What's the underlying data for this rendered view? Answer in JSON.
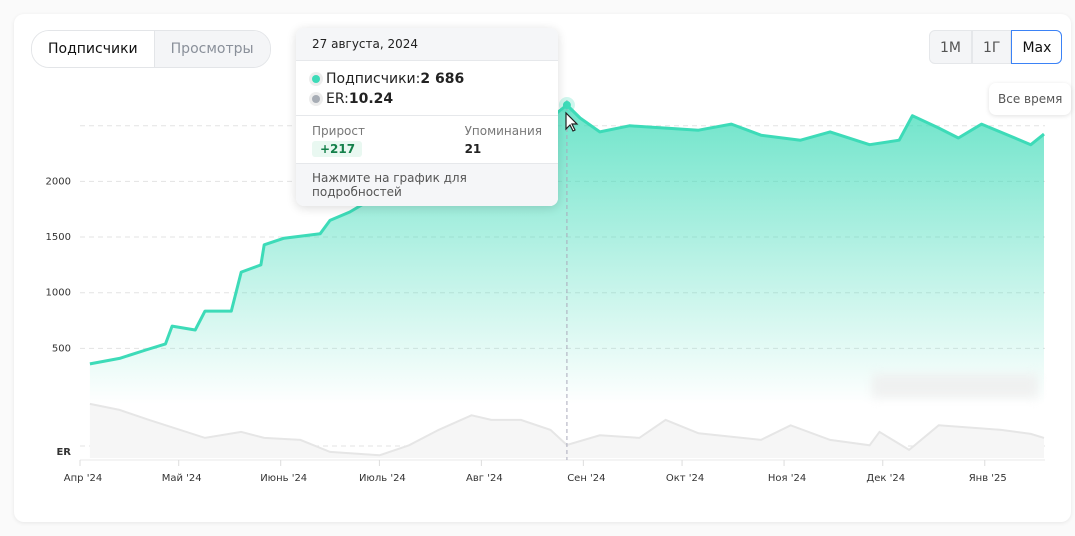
{
  "tabs": [
    {
      "label": "Подписчики",
      "active": true
    },
    {
      "label": "Просмотры",
      "active": false
    }
  ],
  "ranges": [
    {
      "label": "1М"
    },
    {
      "label": "1Г"
    },
    {
      "label": "Max",
      "active": true
    }
  ],
  "range_hint": "Все время",
  "tooltip": {
    "date": "27 августа, 2024",
    "subs_label": "Подписчики: ",
    "subs_value": "2 686",
    "er_label": "ER: ",
    "er_value": "10.24",
    "growth_label": "Прирост",
    "growth_value": "+217",
    "mentions_label": "Упоминания",
    "mentions_value": "21",
    "footer": "Нажмите на график для подробностей"
  },
  "colors": {
    "subscribers": "#3ddbb8",
    "er": "#e6e6e6",
    "accent": "#3b82f6"
  },
  "chart_data": {
    "type": "area",
    "ylim": [
      0,
      2500
    ],
    "y_ticks": [
      "500",
      "1000",
      "1500",
      "2000"
    ],
    "y_tick_values": [
      500,
      1000,
      1500,
      2000
    ],
    "er_axis_label": "ER",
    "x_ticks": [
      "Апр '24",
      "Май '24",
      "Июнь '24",
      "Июль '24",
      "Авг '24",
      "Сен '24",
      "Окт '24",
      "Ноя '24",
      "Дек '24",
      "Янв '25"
    ],
    "x_tick_dates": [
      "2024-04-01",
      "2024-05-01",
      "2024-06-01",
      "2024-07-01",
      "2024-08-01",
      "2024-09-01",
      "2024-10-01",
      "2024-11-01",
      "2024-12-01",
      "2025-01-01"
    ],
    "grid": true,
    "highlight_date": "2024-08-27",
    "series": [
      {
        "name": "Подписчики",
        "points": [
          [
            "2024-04-04",
            360
          ],
          [
            "2024-04-13",
            410
          ],
          [
            "2024-04-21",
            485
          ],
          [
            "2024-04-27",
            540
          ],
          [
            "2024-04-29",
            700
          ],
          [
            "2024-05-06",
            665
          ],
          [
            "2024-05-09",
            835
          ],
          [
            "2024-05-17",
            835
          ],
          [
            "2024-05-20",
            1185
          ],
          [
            "2024-05-26",
            1250
          ],
          [
            "2024-05-27",
            1430
          ],
          [
            "2024-06-02",
            1490
          ],
          [
            "2024-06-13",
            1530
          ],
          [
            "2024-06-16",
            1650
          ],
          [
            "2024-06-22",
            1725
          ],
          [
            "2024-06-28",
            1830
          ],
          [
            "2024-07-06",
            1970
          ],
          [
            "2024-07-16",
            2150
          ],
          [
            "2024-08-07",
            2370
          ],
          [
            "2024-08-22",
            2570
          ],
          [
            "2024-08-27",
            2686
          ],
          [
            "2024-08-31",
            2570
          ],
          [
            "2024-09-06",
            2445
          ],
          [
            "2024-09-15",
            2500
          ],
          [
            "2024-10-06",
            2460
          ],
          [
            "2024-10-16",
            2515
          ],
          [
            "2024-10-25",
            2415
          ],
          [
            "2024-11-06",
            2370
          ],
          [
            "2024-11-15",
            2445
          ],
          [
            "2024-11-27",
            2330
          ],
          [
            "2024-12-06",
            2370
          ],
          [
            "2024-12-10",
            2590
          ],
          [
            "2024-12-18",
            2480
          ],
          [
            "2024-12-24",
            2390
          ],
          [
            "2024-12-31",
            2515
          ],
          [
            "2025-01-15",
            2330
          ],
          [
            "2025-01-19",
            2425
          ]
        ]
      },
      {
        "name": "ER",
        "points": [
          [
            "2024-04-04",
            16.4
          ],
          [
            "2024-04-13",
            15.5
          ],
          [
            "2024-04-22",
            14.0
          ],
          [
            "2024-05-09",
            11.3
          ],
          [
            "2024-05-20",
            12.2
          ],
          [
            "2024-05-27",
            11.3
          ],
          [
            "2024-06-07",
            11.0
          ],
          [
            "2024-06-16",
            9.2
          ],
          [
            "2024-07-01",
            8.7
          ],
          [
            "2024-07-10",
            10.2
          ],
          [
            "2024-07-19",
            12.5
          ],
          [
            "2024-07-29",
            14.7
          ],
          [
            "2024-08-04",
            14.0
          ],
          [
            "2024-08-13",
            14.0
          ],
          [
            "2024-08-22",
            12.5
          ],
          [
            "2024-08-27",
            10.24
          ],
          [
            "2024-09-06",
            11.7
          ],
          [
            "2024-09-18",
            11.3
          ],
          [
            "2024-09-26",
            14.0
          ],
          [
            "2024-10-06",
            12.0
          ],
          [
            "2024-10-25",
            11.0
          ],
          [
            "2024-11-03",
            13.2
          ],
          [
            "2024-11-15",
            11.0
          ],
          [
            "2024-11-27",
            10.2
          ],
          [
            "2024-11-30",
            12.2
          ],
          [
            "2024-12-09",
            9.5
          ],
          [
            "2024-12-18",
            13.2
          ],
          [
            "2025-01-06",
            12.5
          ],
          [
            "2025-01-15",
            11.9
          ],
          [
            "2025-01-19",
            11.3
          ]
        ]
      }
    ]
  }
}
